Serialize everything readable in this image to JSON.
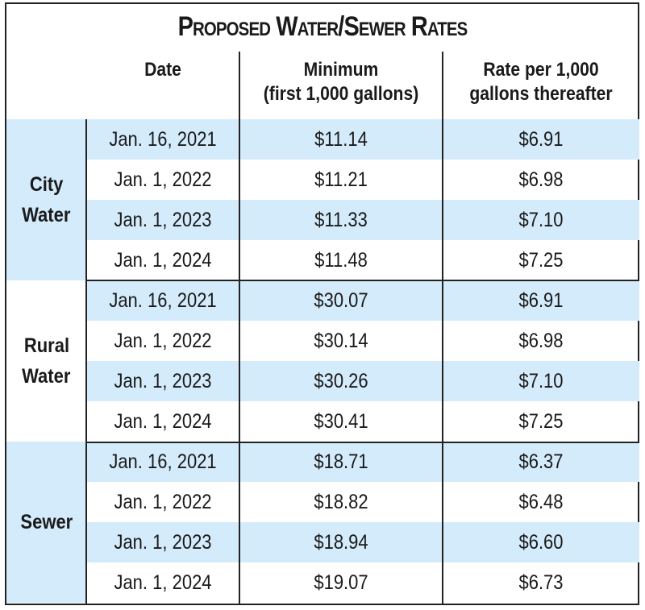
{
  "title": "Proposed Water/Sewer Rates",
  "colors": {
    "row_highlight": "#d4ebfb",
    "border": "#222222"
  },
  "headers": {
    "date": "Date",
    "minimum_line1": "Minimum",
    "minimum_line2": "(first 1,000 gallons)",
    "rate_line1": "Rate per 1,000",
    "rate_line2": "gallons thereafter"
  },
  "chart_data": {
    "type": "table",
    "title": "Proposed Water/Sewer Rates",
    "columns": [
      "Date",
      "Minimum (first 1,000 gallons)",
      "Rate per 1,000 gallons thereafter"
    ],
    "groups": [
      {
        "label_line1": "City",
        "label_line2": "Water",
        "rows": [
          {
            "date": "Jan. 16, 2021",
            "minimum": "$11.14",
            "rate": "$6.91"
          },
          {
            "date": "Jan. 1, 2022",
            "minimum": "$11.21",
            "rate": "$6.98"
          },
          {
            "date": "Jan. 1, 2023",
            "minimum": "$11.33",
            "rate": "$7.10"
          },
          {
            "date": "Jan. 1, 2024",
            "minimum": "$11.48",
            "rate": "$7.25"
          }
        ]
      },
      {
        "label_line1": "Rural",
        "label_line2": "Water",
        "rows": [
          {
            "date": "Jan. 16, 2021",
            "minimum": "$30.07",
            "rate": "$6.91"
          },
          {
            "date": "Jan. 1, 2022",
            "minimum": "$30.14",
            "rate": "$6.98"
          },
          {
            "date": "Jan. 1, 2023",
            "minimum": "$30.26",
            "rate": "$7.10"
          },
          {
            "date": "Jan. 1, 2024",
            "minimum": "$30.41",
            "rate": "$7.25"
          }
        ]
      },
      {
        "label_line1": "Sewer",
        "label_line2": "",
        "rows": [
          {
            "date": "Jan. 16, 2021",
            "minimum": "$18.71",
            "rate": "$6.37"
          },
          {
            "date": "Jan. 1, 2022",
            "minimum": "$18.82",
            "rate": "$6.48"
          },
          {
            "date": "Jan. 1, 2023",
            "minimum": "$18.94",
            "rate": "$6.60"
          },
          {
            "date": "Jan. 1, 2024",
            "minimum": "$19.07",
            "rate": "$6.73"
          }
        ]
      }
    ]
  }
}
